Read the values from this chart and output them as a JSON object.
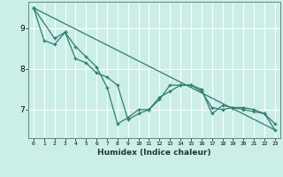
{
  "title": "",
  "xlabel": "Humidex (Indice chaleur)",
  "bg_color": "#cceee8",
  "line_color": "#2e7d6e",
  "grid_color": "#ffffff",
  "xlim": [
    -0.5,
    23.5
  ],
  "ylim": [
    6.3,
    9.65
  ],
  "xticks": [
    0,
    1,
    2,
    3,
    4,
    5,
    6,
    7,
    8,
    9,
    10,
    11,
    12,
    13,
    14,
    15,
    16,
    17,
    18,
    19,
    20,
    21,
    22,
    23
  ],
  "yticks": [
    7,
    8,
    9
  ],
  "series1_x": [
    0,
    1,
    2,
    3,
    4,
    5,
    6,
    7,
    8,
    9,
    10,
    11,
    12,
    13,
    14,
    15,
    16,
    17,
    18,
    19,
    20,
    21,
    22,
    23
  ],
  "series1_y": [
    9.5,
    8.7,
    8.6,
    8.9,
    8.25,
    8.15,
    7.9,
    7.8,
    7.6,
    6.75,
    6.9,
    7.0,
    7.3,
    7.45,
    7.6,
    7.6,
    7.5,
    6.9,
    7.1,
    7.05,
    7.0,
    6.95,
    6.9,
    6.65
  ],
  "series2_x": [
    0,
    2,
    3,
    4,
    5,
    6,
    7,
    8,
    9,
    10,
    11,
    12,
    13,
    14,
    15,
    16,
    17,
    18,
    19,
    20,
    21,
    22,
    23
  ],
  "series2_y": [
    9.5,
    8.75,
    8.9,
    8.55,
    8.3,
    8.05,
    7.55,
    6.65,
    6.8,
    7.0,
    7.0,
    7.25,
    7.6,
    7.6,
    7.6,
    7.45,
    7.05,
    7.0,
    7.05,
    7.05,
    7.0,
    6.9,
    6.5
  ],
  "trend_x": [
    0,
    23
  ],
  "trend_y": [
    9.5,
    6.5
  ]
}
